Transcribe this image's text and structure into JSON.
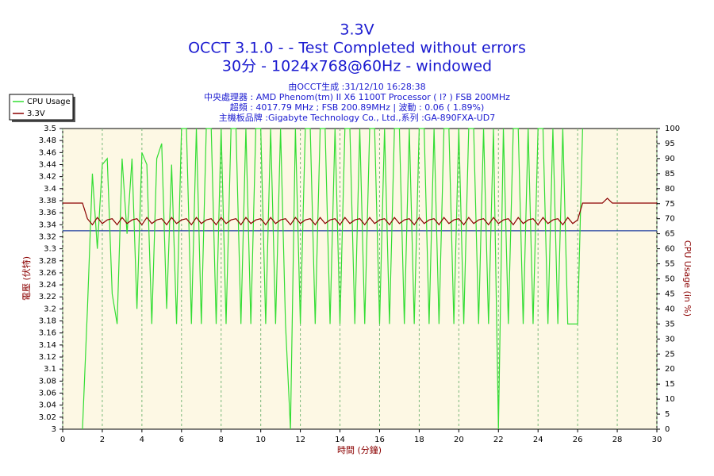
{
  "chart_data": {
    "type": "line",
    "title": "3.3V",
    "subtitle": [
      "OCCT 3.1.0 -  - Test Completed without errors",
      "30分 - 1024x768@60Hz - windowed"
    ],
    "info": [
      "由OCCT生成 :31/12/10 16:28:38",
      "中央處理器 : AMD Phenom(tm) II X6 1100T Processor (  l? ) FSB 200MHz",
      "超頻 : 4017.79 MHz ; FSB 200.89MHz | 波動 : 0.06 ( 1.89%)",
      "主機板品牌 :Gigabyte Technology Co., Ltd.,系列 :GA-890FXA-UD7"
    ],
    "xlabel": "時間 (分鐘)",
    "ylabel": "電壓 (伏特)",
    "y2label": "CPU Usage (in %)",
    "xlim": [
      0,
      30
    ],
    "xticks": [
      0,
      2,
      4,
      6,
      8,
      10,
      12,
      14,
      16,
      18,
      20,
      22,
      24,
      26,
      28,
      30
    ],
    "ylim": [
      3,
      3.5
    ],
    "yticks": [
      3,
      3.02,
      3.04,
      3.06,
      3.08,
      3.1,
      3.12,
      3.14,
      3.16,
      3.18,
      3.2,
      3.22,
      3.24,
      3.26,
      3.28,
      3.3,
      3.32,
      3.34,
      3.36,
      3.38,
      3.4,
      3.42,
      3.44,
      3.46,
      3.48,
      3.5
    ],
    "y2lim": [
      0,
      100
    ],
    "y2ticks": [
      0,
      5,
      10,
      15,
      20,
      25,
      30,
      35,
      40,
      45,
      50,
      55,
      60,
      65,
      70,
      75,
      80,
      85,
      90,
      95,
      100
    ],
    "grid": true,
    "legend": "top-left",
    "reference_line": {
      "value": 3.33,
      "color": "#1f3fa0"
    },
    "x": [
      0,
      0.25,
      0.5,
      0.75,
      1,
      1.25,
      1.5,
      1.75,
      2,
      2.25,
      2.5,
      2.75,
      3,
      3.25,
      3.5,
      3.75,
      4,
      4.25,
      4.5,
      4.75,
      5,
      5.25,
      5.5,
      5.75,
      6,
      6.25,
      6.5,
      6.75,
      7,
      7.25,
      7.5,
      7.75,
      8,
      8.25,
      8.5,
      8.75,
      9,
      9.25,
      9.5,
      9.75,
      10,
      10.25,
      10.5,
      10.75,
      11,
      11.25,
      11.5,
      11.75,
      12,
      12.25,
      12.5,
      12.75,
      13,
      13.25,
      13.5,
      13.75,
      14,
      14.25,
      14.5,
      14.75,
      15,
      15.25,
      15.5,
      15.75,
      16,
      16.25,
      16.5,
      16.75,
      17,
      17.25,
      17.5,
      17.75,
      18,
      18.25,
      18.5,
      18.75,
      19,
      19.25,
      19.5,
      19.75,
      20,
      20.25,
      20.5,
      20.75,
      21,
      21.25,
      21.5,
      21.75,
      22,
      22.25,
      22.5,
      22.75,
      23,
      23.25,
      23.5,
      23.75,
      24,
      24.25,
      24.5,
      24.75,
      25,
      25.25,
      25.5,
      25.75,
      26,
      26.25,
      26.5,
      26.75,
      27,
      27.25,
      27.5,
      27.75,
      28,
      28.25,
      28.5,
      28.75,
      29,
      29.25,
      29.5,
      29.75,
      30
    ],
    "series": [
      {
        "name": "CPU Usage",
        "color": "#33dd33",
        "axis": "y2",
        "values": [
          null,
          null,
          null,
          null,
          0,
          40,
          85,
          60,
          88,
          90,
          45,
          35,
          90,
          65,
          90,
          40,
          92,
          88,
          35,
          90,
          95,
          40,
          88,
          35,
          100,
          100,
          35,
          100,
          35,
          100,
          100,
          35,
          100,
          35,
          100,
          100,
          35,
          100,
          35,
          100,
          100,
          35,
          100,
          35,
          100,
          35,
          0,
          100,
          35,
          100,
          100,
          35,
          100,
          100,
          35,
          100,
          35,
          100,
          100,
          35,
          100,
          35,
          100,
          100,
          35,
          100,
          35,
          100,
          100,
          35,
          100,
          35,
          100,
          100,
          35,
          100,
          35,
          100,
          100,
          35,
          100,
          35,
          100,
          100,
          35,
          100,
          35,
          100,
          0,
          100,
          35,
          100,
          100,
          35,
          100,
          35,
          100,
          100,
          35,
          100,
          35,
          100,
          35,
          35,
          35,
          100,
          null,
          null,
          null,
          null,
          null,
          null,
          null,
          null,
          null,
          null,
          null,
          null,
          null,
          null,
          null
        ]
      },
      {
        "name": "3.3V",
        "color": "#8b0000",
        "values": [
          3.376,
          3.376,
          3.376,
          3.376,
          3.376,
          3.35,
          3.34,
          3.352,
          3.342,
          3.348,
          3.35,
          3.34,
          3.352,
          3.342,
          3.348,
          3.35,
          3.34,
          3.352,
          3.342,
          3.348,
          3.35,
          3.34,
          3.352,
          3.342,
          3.348,
          3.35,
          3.34,
          3.352,
          3.342,
          3.348,
          3.35,
          3.34,
          3.352,
          3.342,
          3.348,
          3.35,
          3.34,
          3.352,
          3.342,
          3.348,
          3.35,
          3.34,
          3.352,
          3.342,
          3.348,
          3.35,
          3.34,
          3.352,
          3.342,
          3.348,
          3.35,
          3.34,
          3.352,
          3.342,
          3.348,
          3.35,
          3.34,
          3.352,
          3.342,
          3.348,
          3.35,
          3.34,
          3.352,
          3.342,
          3.348,
          3.35,
          3.34,
          3.352,
          3.342,
          3.348,
          3.35,
          3.34,
          3.352,
          3.342,
          3.348,
          3.35,
          3.34,
          3.352,
          3.342,
          3.348,
          3.35,
          3.34,
          3.352,
          3.342,
          3.348,
          3.35,
          3.34,
          3.352,
          3.342,
          3.348,
          3.35,
          3.34,
          3.352,
          3.342,
          3.348,
          3.35,
          3.34,
          3.352,
          3.342,
          3.348,
          3.35,
          3.34,
          3.352,
          3.342,
          3.348,
          3.376,
          3.376,
          3.376,
          3.376,
          3.376,
          3.384,
          3.376,
          3.376,
          3.376,
          3.376,
          3.376,
          3.376,
          3.376,
          3.376,
          3.376,
          3.376
        ]
      }
    ]
  }
}
